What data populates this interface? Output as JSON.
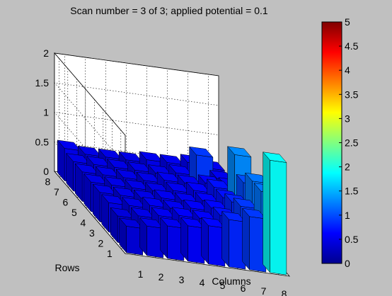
{
  "chart_data": {
    "type": "bar3d",
    "title": "Scan number = 3 of 3; applied potential = 0.1",
    "xlabel": "Columns",
    "ylabel": "Rows",
    "x_ticks": [
      "1",
      "2",
      "3",
      "4",
      "5",
      "6",
      "7",
      "8"
    ],
    "y_ticks": [
      "1",
      "2",
      "3",
      "4",
      "5",
      "6",
      "7",
      "8"
    ],
    "z_ticks": [
      "0",
      "0.5",
      "1",
      "1.5",
      "2"
    ],
    "zlim": [
      0,
      2
    ],
    "grid": true,
    "colormap": "jet",
    "colorbar": {
      "ticks": [
        "0",
        "0.5",
        "1",
        "1.5",
        "2",
        "2.5",
        "3",
        "3.5",
        "4",
        "4.5",
        "5"
      ],
      "range": [
        0,
        5
      ]
    },
    "rows": [
      "1",
      "2",
      "3",
      "4",
      "5",
      "6",
      "7",
      "8"
    ],
    "columns": [
      "1",
      "2",
      "3",
      "4",
      "5",
      "6",
      "7",
      "8"
    ],
    "values": [
      [
        0.45,
        0.5,
        0.55,
        0.6,
        0.65,
        0.8,
        0.9,
        1.9
      ],
      [
        0.45,
        0.5,
        0.55,
        0.6,
        0.6,
        0.7,
        0.9,
        1.2
      ],
      [
        0.5,
        0.5,
        0.55,
        0.55,
        0.6,
        0.65,
        0.8,
        1.2
      ],
      [
        0.5,
        0.5,
        0.5,
        0.55,
        0.55,
        0.6,
        0.7,
        1.0
      ],
      [
        0.5,
        0.5,
        0.5,
        0.5,
        0.55,
        0.6,
        0.7,
        1.3
      ],
      [
        0.5,
        0.5,
        0.5,
        0.5,
        0.55,
        0.55,
        0.6,
        0.6
      ],
      [
        0.5,
        0.5,
        0.5,
        0.5,
        0.5,
        0.55,
        0.9,
        0.55
      ],
      [
        0.55,
        0.5,
        0.5,
        0.5,
        0.55,
        0.55,
        0.6,
        0.55
      ]
    ]
  }
}
